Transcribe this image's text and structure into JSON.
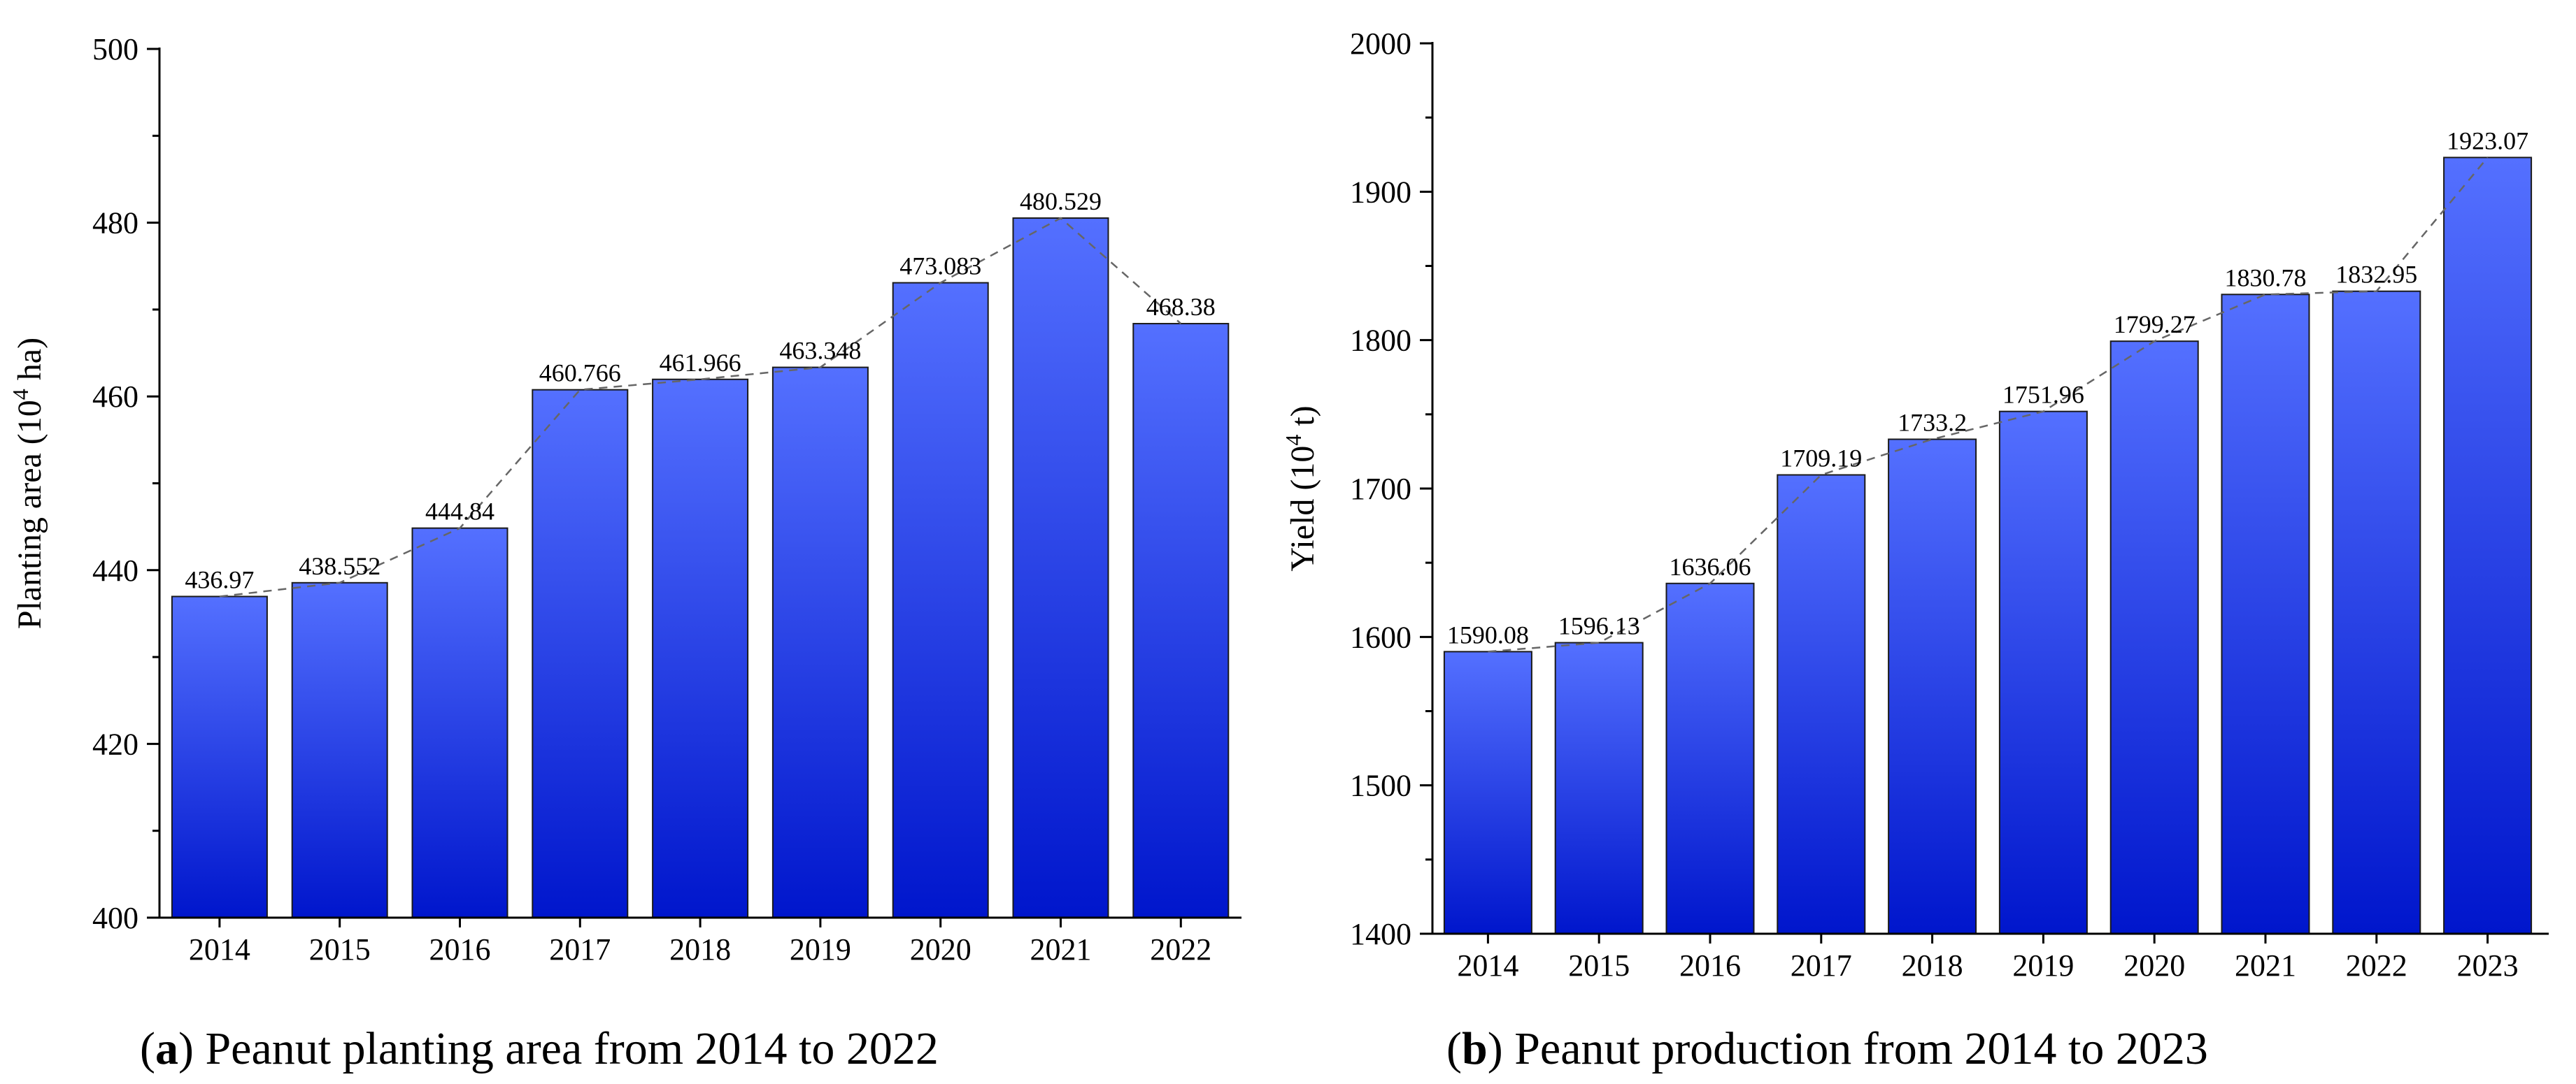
{
  "chart_data": [
    {
      "type": "bar",
      "title": "Peanut planting area from 2014 to 2022",
      "panel": "a",
      "ylabel": {
        "base": "Planting area (10",
        "sup": "4",
        "unit": " ha)"
      },
      "xlabel": "",
      "categories": [
        "2014",
        "2015",
        "2016",
        "2017",
        "2018",
        "2019",
        "2020",
        "2021",
        "2022"
      ],
      "values": [
        436.97,
        438.552,
        444.84,
        460.766,
        461.966,
        463.348,
        473.083,
        480.529,
        468.38
      ],
      "value_labels": [
        "436.97",
        "438.552",
        "444.84",
        "460.766",
        "461.966",
        "463.348",
        "473.083",
        "480.529",
        "468.38"
      ],
      "ylim": [
        400,
        500
      ],
      "yticks": [
        "400",
        "420",
        "440",
        "460",
        "480",
        "500"
      ],
      "trend_line": "dashed",
      "bar_color_top": "#5470ff",
      "bar_color_bottom": "#0016cc"
    },
    {
      "type": "bar",
      "title": "Peanut production from 2014 to 2023",
      "panel": "b",
      "ylabel": {
        "base": "Yield (10",
        "sup": "4",
        "unit": " t)"
      },
      "xlabel": "",
      "categories": [
        "2014",
        "2015",
        "2016",
        "2017",
        "2018",
        "2019",
        "2020",
        "2021",
        "2022",
        "2023"
      ],
      "values": [
        1590.08,
        1596.13,
        1636.06,
        1709.19,
        1733.2,
        1751.96,
        1799.27,
        1830.78,
        1832.95,
        1923.07
      ],
      "value_labels": [
        "1590.08",
        "1596.13",
        "1636.06",
        "1709.19",
        "1733.2",
        "1751.96",
        "1799.27",
        "1830.78",
        "1832.95",
        "1923.07"
      ],
      "ylim": [
        1400,
        2000
      ],
      "yticks": [
        "1400",
        "1500",
        "1600",
        "1700",
        "1800",
        "1900",
        "2000"
      ],
      "trend_line": "dashed",
      "bar_color_top": "#5470ff",
      "bar_color_bottom": "#0016cc"
    }
  ],
  "captions": [
    {
      "letter": "a",
      "text": " Peanut planting area from 2014 to 2022"
    },
    {
      "letter": "b",
      "text": " Peanut production from 2014 to 2023"
    }
  ]
}
